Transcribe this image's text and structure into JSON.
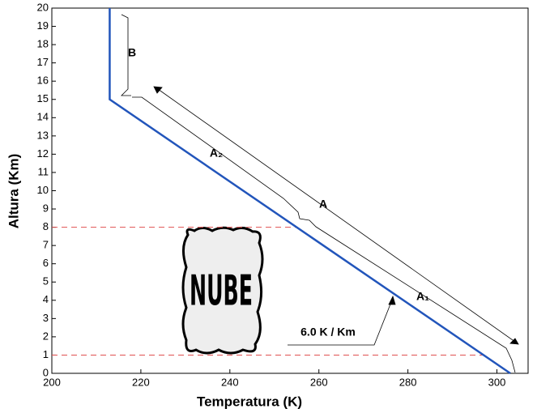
{
  "chart_data": {
    "type": "line",
    "x_label": "Temperatura (K)",
    "y_label": "Altura (Km)",
    "x": [
      303,
      213,
      213
    ],
    "series": [
      {
        "color": "#2255bb",
        "values": [
          0,
          15,
          20
        ]
      }
    ],
    "hlines": [
      8,
      1
    ],
    "hline_color": "#e05050",
    "xlim": [
      200,
      307
    ],
    "ylim": [
      0,
      20
    ],
    "xticks": [
      200,
      220,
      240,
      260,
      280,
      300
    ],
    "yticks": [
      0,
      1,
      2,
      3,
      4,
      5,
      6,
      7,
      8,
      9,
      10,
      11,
      12,
      13,
      14,
      15,
      16,
      17,
      18,
      19,
      20
    ],
    "annotations": {
      "a": "A",
      "a1": "A₁",
      "a2": "A₂",
      "b": "B",
      "lapse": "6.0  K / Km",
      "cloud": "NUBE"
    }
  }
}
